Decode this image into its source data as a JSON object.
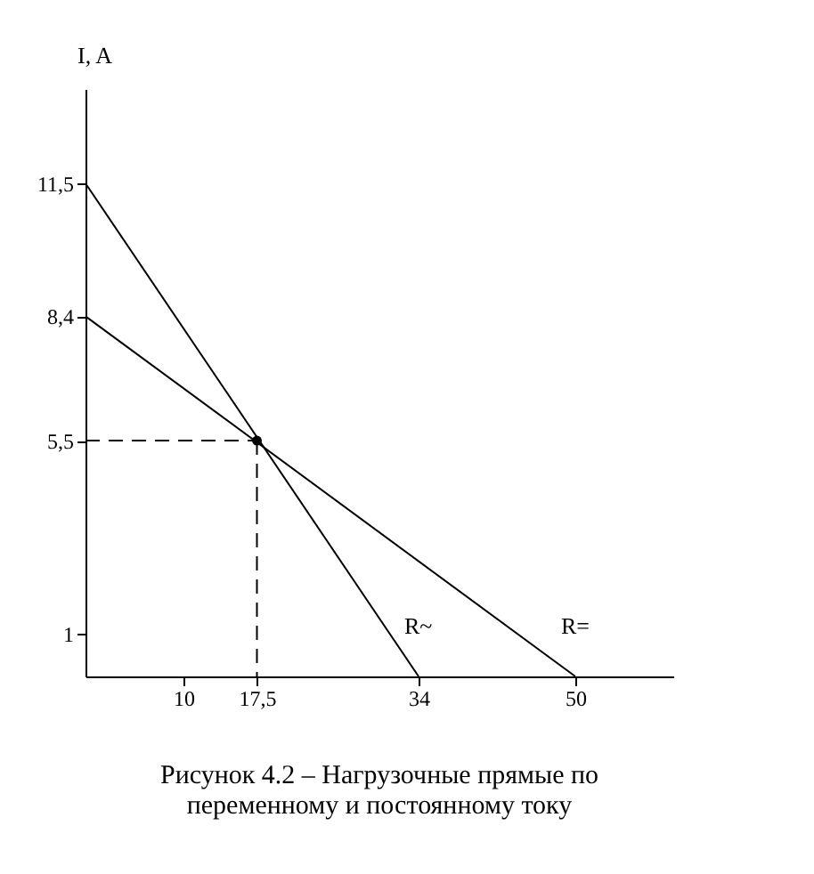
{
  "chart_data": {
    "type": "line",
    "title": "Рисунок 4.2 – Нагрузочные прямые по переменному и постоянному току",
    "ylabel": "I, A",
    "xlim": [
      0,
      60
    ],
    "ylim": [
      0,
      13.7
    ],
    "xticks": [
      10,
      {
        "value": 17.5,
        "label": "17,5"
      },
      34,
      50
    ],
    "yticks": [
      1,
      {
        "value": 5.5,
        "label": "5,5"
      },
      {
        "value": 8.4,
        "label": "8,4"
      },
      {
        "value": 11.5,
        "label": "11,5"
      }
    ],
    "grid": false,
    "series": [
      {
        "name": "R~",
        "color": "#000000",
        "x": [
          0,
          34
        ],
        "values": [
          11.5,
          0
        ]
      },
      {
        "name": "R=",
        "color": "#000000",
        "x": [
          0,
          50
        ],
        "values": [
          8.4,
          0
        ]
      },
      {
        "color": "#000000",
        "x": [
          0,
          17.5
        ],
        "values": [
          5.5,
          5.5
        ],
        "line_style": "dashed"
      },
      {
        "color": "#000000",
        "x": [
          17.5,
          17.5
        ],
        "values": [
          5.5,
          0
        ],
        "line_style": "dashed"
      },
      {
        "color": "#000000",
        "type": "scatter",
        "marker": "circle",
        "x": [
          17.5
        ],
        "values": [
          5.5
        ]
      }
    ]
  }
}
